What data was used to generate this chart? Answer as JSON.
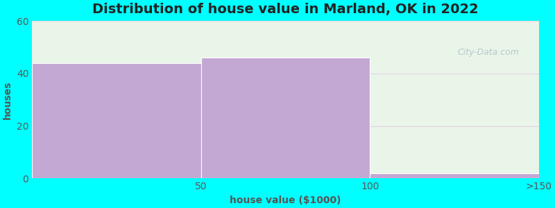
{
  "title": "Distribution of house value in Marland, OK in 2022",
  "xlabel": "house value ($1000)",
  "ylabel": "houses",
  "background_color": "#00FFFF",
  "plot_bg_color_top": "#e8f5e8",
  "plot_bg_color_bottom": "#f5faf5",
  "bar_categories": [
    "50",
    "100",
    ">150"
  ],
  "bar_values": [
    44,
    46,
    2
  ],
  "bar_color": "#c4a8d4",
  "bar_edge_color": "#ffffff",
  "ylim": [
    0,
    60
  ],
  "yticks": [
    0,
    20,
    40,
    60
  ],
  "xlim": [
    0,
    3
  ],
  "title_fontsize": 14,
  "label_fontsize": 10,
  "tick_fontsize": 10,
  "watermark": "City-Data.com",
  "grid_color": "#e8d0e8",
  "tick_color": "#555555"
}
